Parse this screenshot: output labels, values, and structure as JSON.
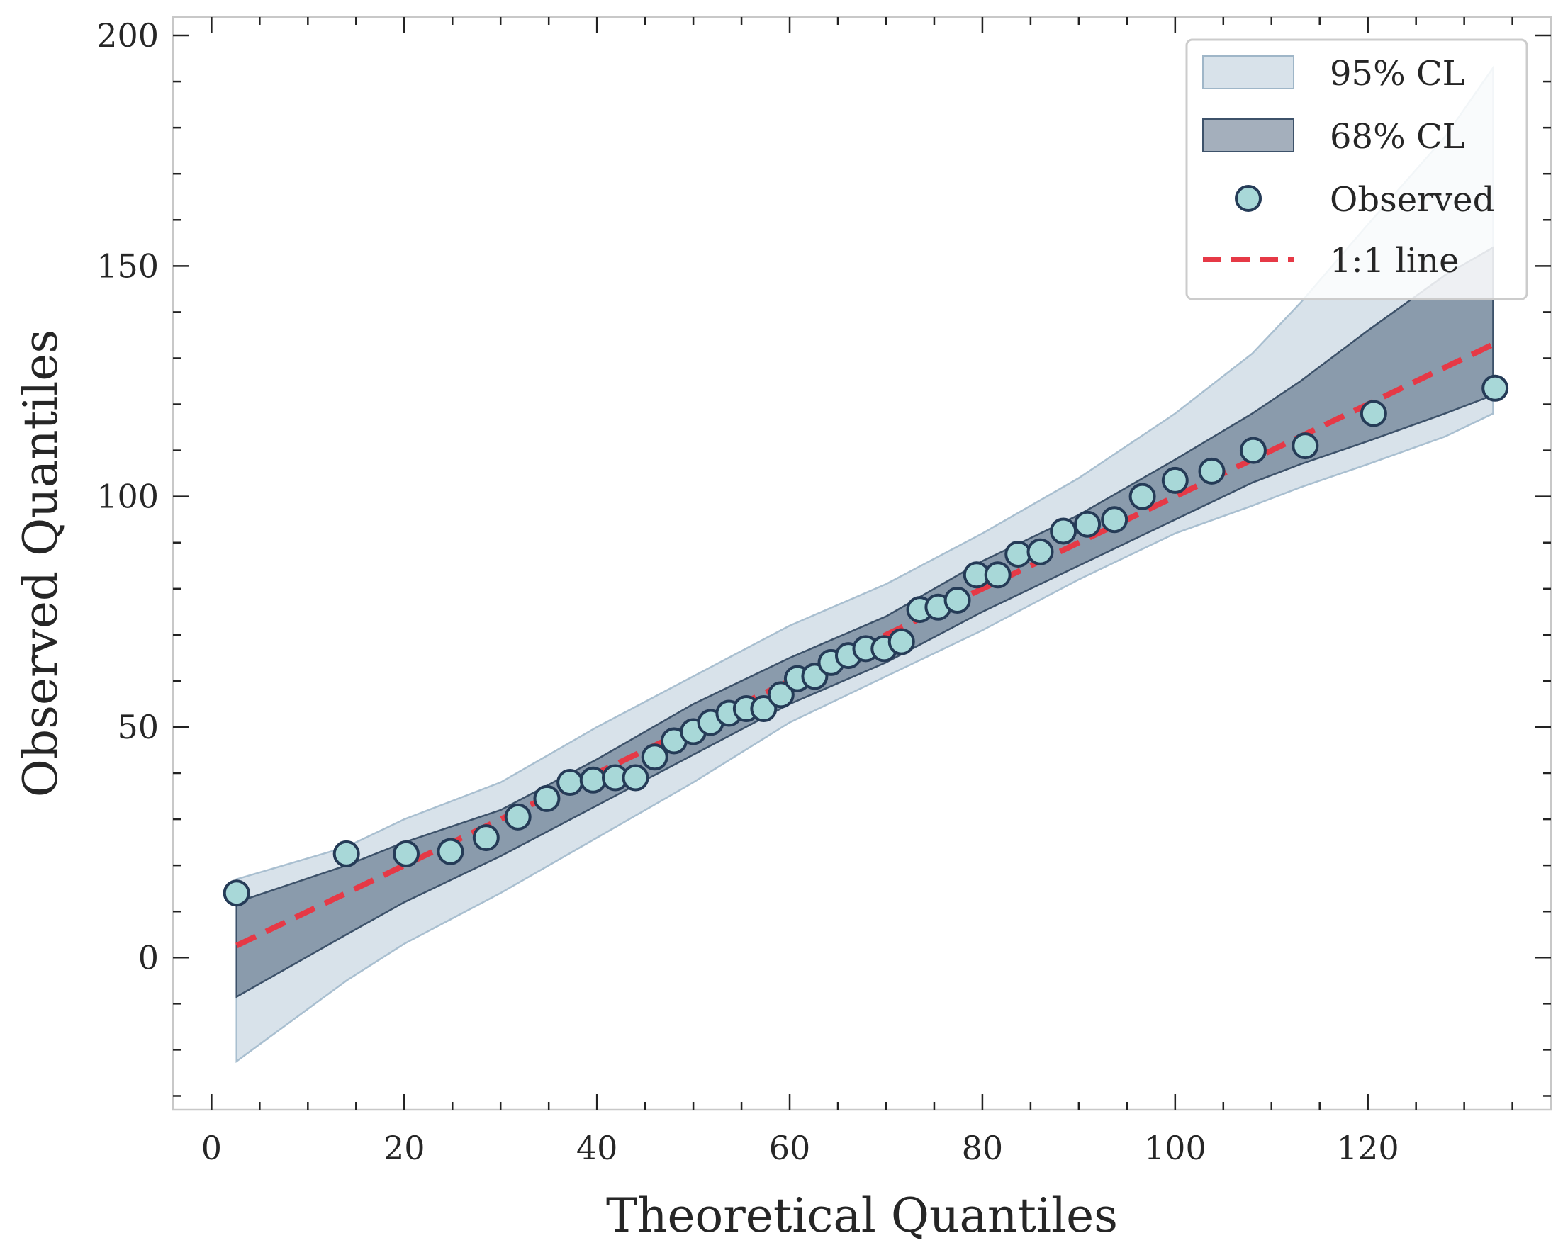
{
  "chart_data": {
    "type": "scatter",
    "title": "",
    "xlabel": "Theoretical Quantiles",
    "ylabel": "Observed Quantiles",
    "xlim": [
      -4,
      139
    ],
    "ylim": [
      -33,
      204
    ],
    "xticks": [
      0,
      20,
      40,
      60,
      80,
      100,
      120
    ],
    "yticks": [
      0,
      50,
      100,
      150,
      200
    ],
    "colors": {
      "band95": "#b8cbd9",
      "band68": "#4a6079",
      "marker_fill": "#a8d8d8",
      "marker_edge": "#253b57",
      "line": "#e63946",
      "axis": "#c8c8c8",
      "tick": "#222222"
    },
    "legend": {
      "position": "top-right",
      "entries": [
        {
          "label": "95% CL",
          "kind": "band95"
        },
        {
          "label": "68% CL",
          "kind": "band68"
        },
        {
          "label": "Observed",
          "kind": "marker"
        },
        {
          "label": "1:1 line",
          "kind": "line"
        }
      ]
    },
    "band95": {
      "x": [
        2.6,
        14,
        20,
        30,
        40,
        50,
        60,
        70,
        80,
        90,
        100,
        108,
        113,
        120,
        128,
        133
      ],
      "lower": [
        -22.5,
        -5,
        3,
        14,
        26,
        38,
        51,
        61,
        71,
        82,
        92,
        98,
        102,
        107,
        113,
        118
      ],
      "upper": [
        17,
        24,
        30,
        38,
        50,
        61,
        72,
        81,
        92,
        104,
        118,
        131,
        142,
        159,
        178,
        193
      ]
    },
    "band68": {
      "x": [
        2.6,
        14,
        20,
        30,
        40,
        50,
        60,
        70,
        80,
        90,
        100,
        108,
        113,
        120,
        128,
        133
      ],
      "lower": [
        -8.5,
        5,
        12,
        22,
        33,
        44,
        55,
        64,
        75,
        85,
        95,
        103,
        107,
        112,
        118,
        122
      ],
      "upper": [
        12,
        20,
        25,
        32,
        43,
        55,
        65,
        74,
        86,
        96,
        108,
        118,
        125,
        136,
        148,
        154
      ]
    },
    "observed": {
      "x": [
        2.6,
        14,
        20.2,
        24.8,
        28.5,
        31.8,
        34.8,
        37.2,
        39.6,
        41.9,
        44,
        46,
        48,
        50,
        51.8,
        53.7,
        55.5,
        57.3,
        59.1,
        60.8,
        62.6,
        64.3,
        66.1,
        67.9,
        69.8,
        71.6,
        73.5,
        75.4,
        77.4,
        79.4,
        81.6,
        83.7,
        86,
        88.4,
        90.9,
        93.7,
        96.6,
        100,
        103.8,
        108.1,
        113.5,
        120.6,
        133.2
      ],
      "y": [
        14,
        22.5,
        22.5,
        23,
        26,
        30.5,
        34.5,
        38,
        38.5,
        39,
        39,
        43.5,
        47,
        49,
        51,
        53,
        54,
        54,
        57,
        60.5,
        61,
        64,
        65.5,
        67,
        67,
        68.5,
        75.5,
        76,
        77.5,
        83,
        83,
        87.5,
        88,
        92.5,
        94,
        95,
        100,
        103.5,
        105.5,
        110,
        111,
        118,
        123.5
      ]
    },
    "ref_line": {
      "x": [
        2.6,
        133.2
      ],
      "y": [
        2.6,
        133.2
      ]
    }
  }
}
